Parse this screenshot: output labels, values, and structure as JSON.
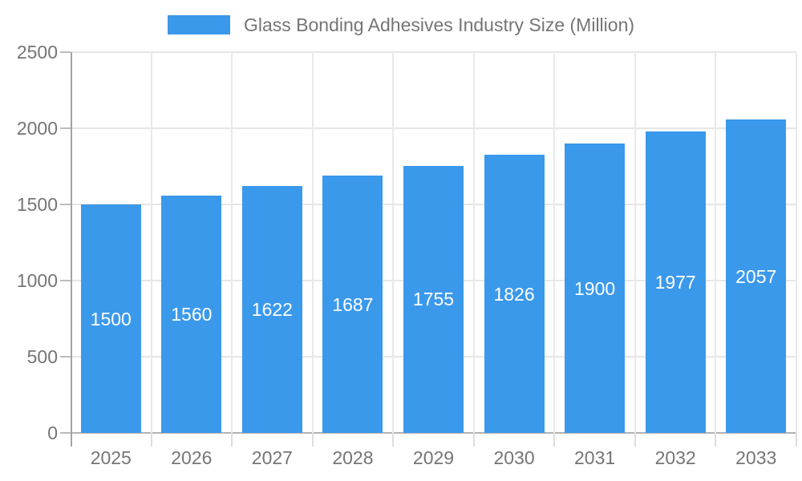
{
  "legend": {
    "label": "Glass Bonding Adhesives Industry Size (Million)"
  },
  "chart_data": {
    "type": "bar",
    "title": "Glass Bonding Adhesives Industry Size (Million)",
    "categories": [
      "2025",
      "2026",
      "2027",
      "2028",
      "2029",
      "2030",
      "2031",
      "2032",
      "2033"
    ],
    "values": [
      1500,
      1560,
      1622,
      1687,
      1755,
      1826,
      1900,
      1977,
      2057
    ],
    "bar_labels": [
      "1500",
      "1560",
      "1622",
      "1687",
      "1755",
      "1826",
      "1900",
      "1977",
      "2057"
    ],
    "xlabel": "",
    "ylabel": "",
    "ylim": [
      0,
      2500
    ],
    "ytick_step": 500,
    "ytick_labels": [
      "0",
      "500",
      "1000",
      "1500",
      "2000",
      "2500"
    ],
    "grid": true,
    "legend_position": "top-center"
  },
  "colors": {
    "bar": "#3B99EC",
    "bar_value_text": "#ffffff",
    "axis_text": "#757575",
    "gridline": "#e6e6e6",
    "axis_line": "#a3a3a3",
    "baseline": "#b3b3b3",
    "background": "#ffffff"
  }
}
